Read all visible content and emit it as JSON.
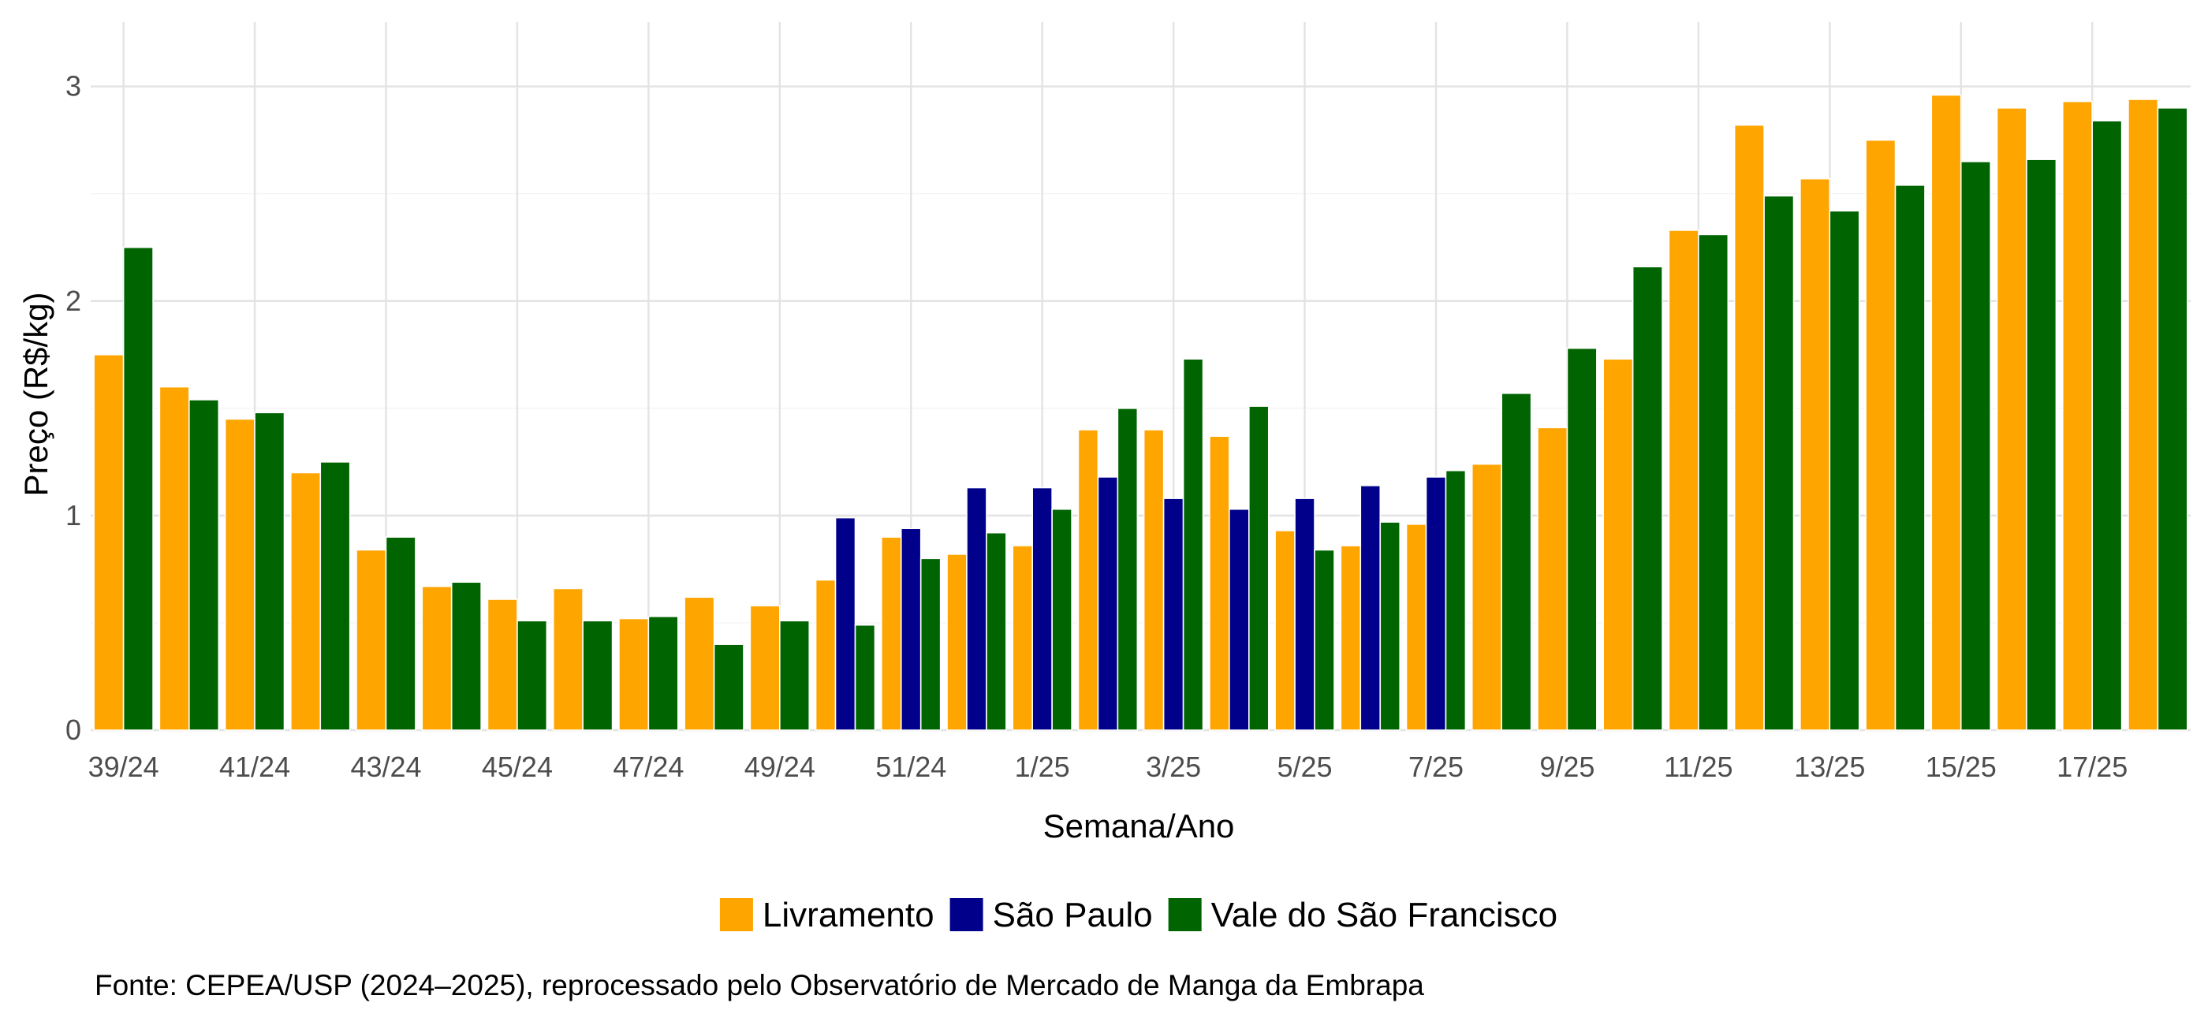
{
  "chart_data": {
    "type": "bar",
    "title": "",
    "xlabel": "Semana/Ano",
    "ylabel": "Preço (R$/kg)",
    "ylim": [
      0,
      3.3
    ],
    "yticks": [
      0,
      1,
      2,
      3
    ],
    "grid": true,
    "legend_position": "bottom",
    "categories": [
      "39/24",
      "40/24",
      "41/24",
      "42/24",
      "43/24",
      "44/24",
      "45/24",
      "46/24",
      "47/24",
      "48/24",
      "49/24",
      "50/24",
      "51/24",
      "52/24",
      "1/25",
      "2/25",
      "3/25",
      "4/25",
      "5/25",
      "6/25",
      "7/25",
      "8/25",
      "9/25",
      "10/25",
      "11/25",
      "12/25",
      "13/25",
      "14/25",
      "15/25",
      "16/25",
      "17/25",
      "18/25"
    ],
    "tick_labels": [
      "39/24",
      "41/24",
      "43/24",
      "45/24",
      "47/24",
      "49/24",
      "51/24",
      "1/25",
      "3/25",
      "5/25",
      "7/25",
      "9/25",
      "11/25",
      "13/25",
      "15/25",
      "17/25"
    ],
    "series": [
      {
        "name": "Livramento",
        "color": "#FFA500",
        "values": [
          1.75,
          1.6,
          1.45,
          1.2,
          0.84,
          0.67,
          0.61,
          0.66,
          0.52,
          0.62,
          0.58,
          0.7,
          0.9,
          0.82,
          0.86,
          1.4,
          1.4,
          1.37,
          0.93,
          0.86,
          0.96,
          1.24,
          1.41,
          1.73,
          2.33,
          2.82,
          2.57,
          2.75,
          2.96,
          2.9,
          2.93,
          2.94
        ]
      },
      {
        "name": "São Paulo",
        "color": "#00008B",
        "values": [
          null,
          null,
          null,
          null,
          null,
          null,
          null,
          null,
          null,
          null,
          null,
          0.99,
          0.94,
          1.13,
          1.13,
          1.18,
          1.08,
          1.03,
          1.08,
          1.14,
          1.18,
          null,
          null,
          null,
          null,
          null,
          null,
          null,
          null,
          null,
          null,
          null
        ]
      },
      {
        "name": "Vale do São Francisco",
        "color": "#006400",
        "values": [
          2.25,
          1.54,
          1.48,
          1.25,
          0.9,
          0.69,
          0.51,
          0.51,
          0.53,
          0.4,
          0.51,
          0.49,
          0.8,
          0.92,
          1.03,
          1.5,
          1.73,
          1.51,
          0.84,
          0.97,
          1.21,
          1.57,
          1.78,
          2.16,
          2.31,
          2.49,
          2.42,
          2.54,
          2.65,
          2.66,
          2.84,
          2.9
        ]
      }
    ],
    "caption": "Fonte: CEPEA/USP (2024–2025), reprocessado pelo Observatório de Mercado de Manga da Embrapa"
  }
}
